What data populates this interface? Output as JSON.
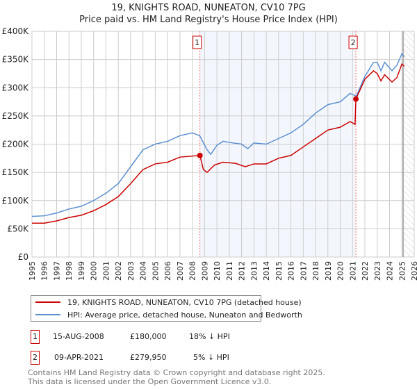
{
  "title": "19, KNIGHTS ROAD, NUNEATON, CV10 7PG",
  "subtitle": "Price paid vs. HM Land Registry's House Price Index (HPI)",
  "chart_data": {
    "type": "line",
    "title": "19, KNIGHTS ROAD, NUNEATON, CV10 7PG — Price paid vs. HM Land Registry's House Price Index (HPI)",
    "xlim": [
      1995,
      2026
    ],
    "ylim": [
      0,
      400000
    ],
    "xticks": [
      "1995",
      "1996",
      "1997",
      "1998",
      "1999",
      "2000",
      "2001",
      "2002",
      "2003",
      "2004",
      "2005",
      "2006",
      "2007",
      "2008",
      "2009",
      "2010",
      "2011",
      "2012",
      "2013",
      "2014",
      "2015",
      "2016",
      "2017",
      "2018",
      "2019",
      "2020",
      "2021",
      "2022",
      "2023",
      "2024",
      "2025",
      "2026"
    ],
    "yticks": [
      {
        "v": 0,
        "label": "£0"
      },
      {
        "v": 50000,
        "label": "£50K"
      },
      {
        "v": 100000,
        "label": "£100K"
      },
      {
        "v": 150000,
        "label": "£150K"
      },
      {
        "v": 200000,
        "label": "£200K"
      },
      {
        "v": 250000,
        "label": "£250K"
      },
      {
        "v": 300000,
        "label": "£300K"
      },
      {
        "v": 350000,
        "label": "£350K"
      },
      {
        "v": 400000,
        "label": "£400K"
      }
    ],
    "grid": true,
    "shaded_range": [
      2008.62,
      2021.27
    ],
    "forecast_from": 2025.1,
    "series": [
      {
        "name": "19, KNIGHTS ROAD, NUNEATON, CV10 7PG (detached house)",
        "color": "#cc0000",
        "x": [
          1995,
          1996,
          1997,
          1998,
          1999,
          2000,
          2001,
          2002,
          2003,
          2004,
          2005,
          2006,
          2007,
          2008.62,
          2008.9,
          2009.2,
          2009.8,
          2010.5,
          2011.5,
          2012.3,
          2013,
          2014,
          2015,
          2016,
          2017,
          2018,
          2019,
          2020,
          2020.8,
          2021.2,
          2021.27,
          2022,
          2022.7,
          2023,
          2023.3,
          2023.6,
          2024.2,
          2024.6,
          2025,
          2025.2
        ],
        "y": [
          60000,
          60000,
          64000,
          70000,
          74000,
          82000,
          93000,
          107000,
          130000,
          155000,
          165000,
          168000,
          177000,
          180000,
          155000,
          150000,
          163000,
          168000,
          166000,
          160000,
          165000,
          165000,
          175000,
          180000,
          195000,
          210000,
          225000,
          230000,
          240000,
          235000,
          279950,
          315000,
          330000,
          325000,
          312000,
          323000,
          310000,
          318000,
          342000,
          338000
        ]
      },
      {
        "name": "HPI: Average price, detached house, Nuneaton and Bedworth",
        "color": "#5b8fd0",
        "x": [
          1995,
          1996,
          1997,
          1998,
          1999,
          2000,
          2001,
          2002,
          2003,
          2004,
          2005,
          2006,
          2007,
          2008,
          2008.6,
          2009.2,
          2009.5,
          2010,
          2010.5,
          2011,
          2012,
          2012.5,
          2013,
          2014,
          2015,
          2016,
          2017,
          2018,
          2019,
          2020,
          2020.8,
          2021.3,
          2022,
          2022.7,
          2023,
          2023.3,
          2023.6,
          2024.2,
          2024.6,
          2025,
          2025.2
        ],
        "y": [
          72000,
          73000,
          78000,
          85000,
          90000,
          100000,
          113000,
          130000,
          160000,
          190000,
          200000,
          205000,
          215000,
          220000,
          215000,
          190000,
          182000,
          198000,
          205000,
          203000,
          200000,
          192000,
          202000,
          200000,
          210000,
          220000,
          235000,
          255000,
          270000,
          275000,
          290000,
          285000,
          320000,
          345000,
          345000,
          330000,
          345000,
          330000,
          340000,
          360000,
          355000
        ]
      }
    ],
    "sales": [
      {
        "id": "1",
        "x": 2008.62,
        "y": 180000,
        "date": "15-AUG-2008",
        "price": "£180,000",
        "hpi": "18% ↓ HPI"
      },
      {
        "id": "2",
        "x": 2021.27,
        "y": 279950,
        "date": "09-APR-2021",
        "price": "£279,950",
        "hpi": "5% ↓ HPI"
      }
    ]
  },
  "legend": {
    "red": "19, KNIGHTS ROAD, NUNEATON, CV10 7PG (detached house)",
    "blue": "HPI: Average price, detached house, Nuneaton and Bedworth"
  },
  "footer": {
    "line1": "Contains HM Land Registry data © Crown copyright and database right 2025.",
    "line2": "This data is licensed under the Open Government Licence v3.0."
  }
}
